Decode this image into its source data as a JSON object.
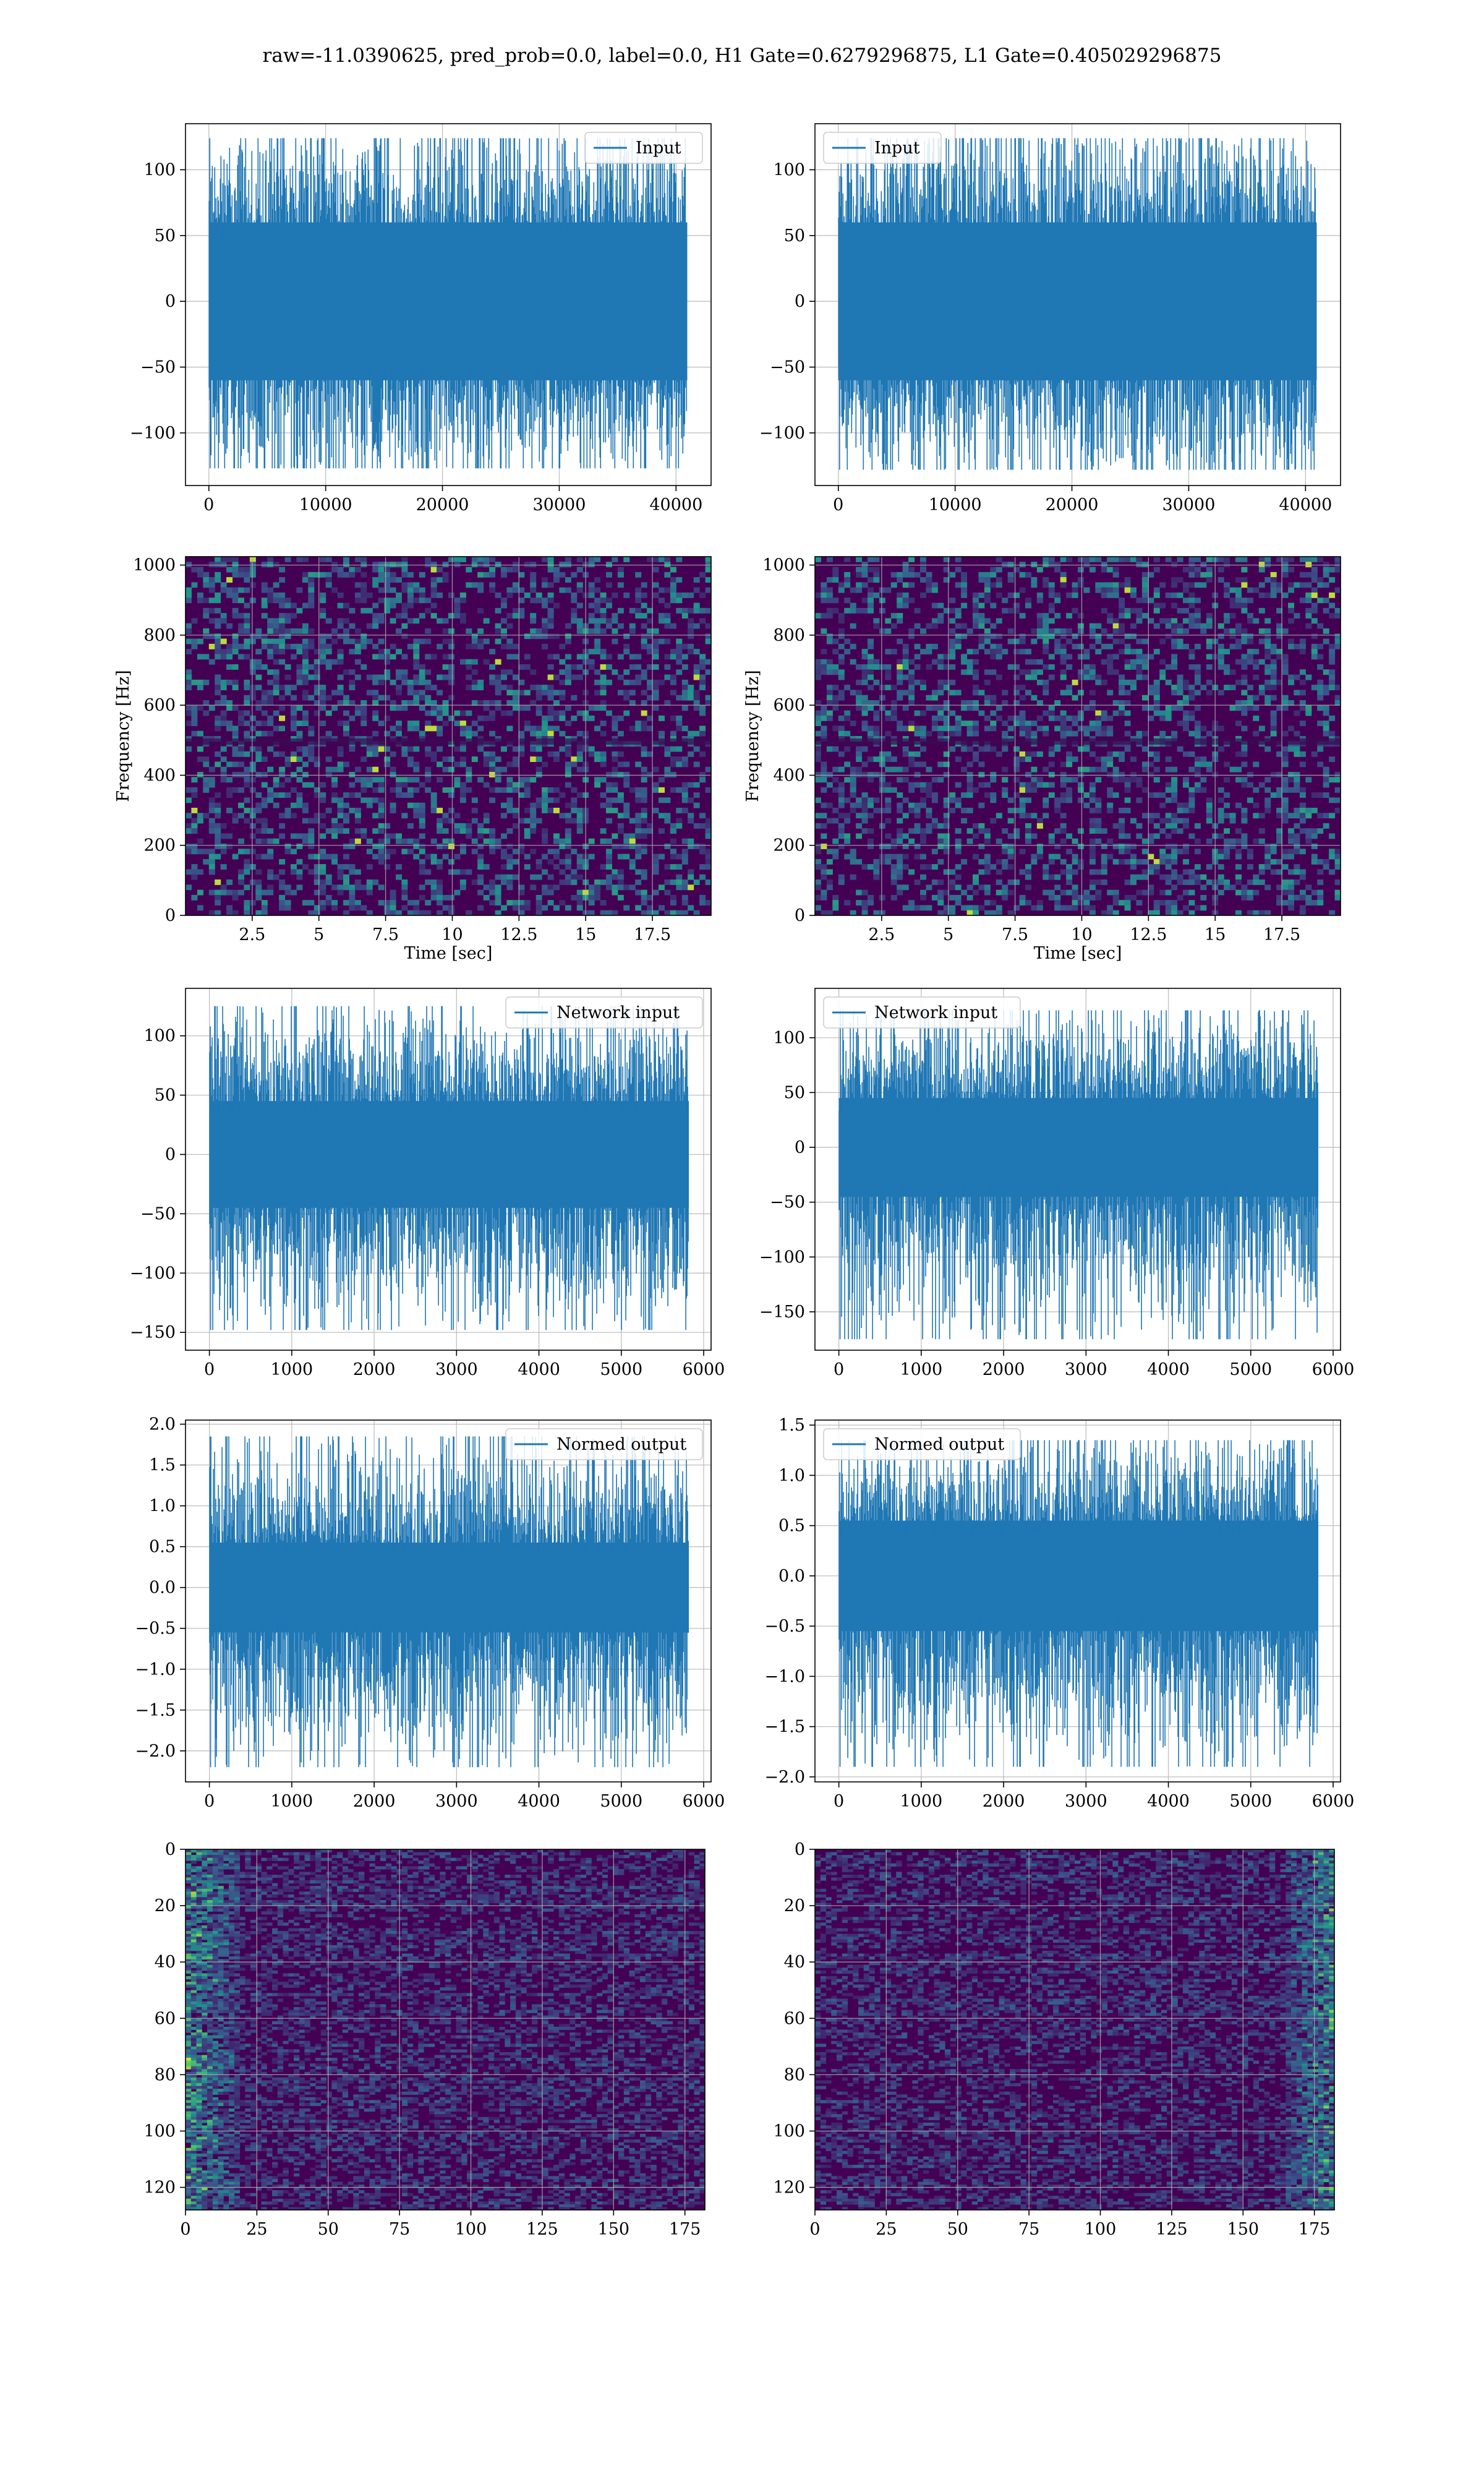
{
  "figure_title": "raw=-11.0390625, pred_prob=0.0, label=0.0, H1 Gate=0.6279296875, L1 Gate=0.405029296875",
  "colors": {
    "line": "#1f77b4",
    "grid": "#b0b0b0",
    "viridis_low": "#440154",
    "viridis_mid": "#21918c",
    "viridis_high": "#fde725"
  },
  "chart_data": [
    {
      "type": "line",
      "id": "r1-left",
      "legend": "Input",
      "legend_loc": "upper-right",
      "xlim": [
        -2000,
        43000
      ],
      "ylim": [
        -140,
        135
      ],
      "xticks": [
        0,
        10000,
        20000,
        30000,
        40000
      ],
      "yticks": [
        -100,
        -50,
        0,
        50,
        100
      ],
      "series": [
        {
          "x_range": [
            0,
            40960
          ],
          "core_amp": 60,
          "peak_max": 124,
          "peak_min": -127
        }
      ],
      "grid": true
    },
    {
      "type": "line",
      "id": "r1-right",
      "legend": "Input",
      "legend_loc": "upper-left",
      "xlim": [
        -2000,
        43000
      ],
      "ylim": [
        -140,
        135
      ],
      "xticks": [
        0,
        10000,
        20000,
        30000,
        40000
      ],
      "yticks": [
        -100,
        -50,
        0,
        50,
        100
      ],
      "series": [
        {
          "x_range": [
            0,
            40960
          ],
          "core_amp": 60,
          "peak_max": 124,
          "peak_min": -128
        }
      ],
      "grid": true
    },
    {
      "type": "heatmap",
      "id": "r2-left",
      "xlabel": "Time [sec]",
      "ylabel": "Frequency [Hz]",
      "xlim": [
        0,
        19.7
      ],
      "ylim": [
        0,
        1024
      ],
      "xticks": [
        2.5,
        5.0,
        7.5,
        10.0,
        12.5,
        15.0,
        17.5
      ],
      "yticks": [
        0,
        200,
        400,
        600,
        800,
        1000
      ],
      "grid": true
    },
    {
      "type": "heatmap",
      "id": "r2-right",
      "xlabel": "Time [sec]",
      "ylabel": "Frequency [Hz]",
      "xlim": [
        0,
        19.7
      ],
      "ylim": [
        0,
        1024
      ],
      "xticks": [
        2.5,
        5.0,
        7.5,
        10.0,
        12.5,
        15.0,
        17.5
      ],
      "yticks": [
        0,
        200,
        400,
        600,
        800,
        1000
      ],
      "grid": true
    },
    {
      "type": "line",
      "id": "r3-left",
      "legend": "Network input",
      "legend_loc": "upper-right",
      "xlim": [
        -290,
        6090
      ],
      "ylim": [
        -165,
        140
      ],
      "xticks": [
        0,
        1000,
        2000,
        3000,
        4000,
        5000,
        6000
      ],
      "yticks": [
        -150,
        -100,
        -50,
        0,
        50,
        100
      ],
      "series": [
        {
          "x_range": [
            0,
            5820
          ],
          "core_amp": 45,
          "peak_max": 125,
          "peak_min": -148
        }
      ],
      "grid": true
    },
    {
      "type": "line",
      "id": "r3-right",
      "legend": "Network input",
      "legend_loc": "upper-left",
      "xlim": [
        -290,
        6090
      ],
      "ylim": [
        -185,
        145
      ],
      "xticks": [
        0,
        1000,
        2000,
        3000,
        4000,
        5000,
        6000
      ],
      "yticks": [
        -150,
        -100,
        -50,
        0,
        50,
        100
      ],
      "series": [
        {
          "x_range": [
            0,
            5820
          ],
          "core_amp": 45,
          "peak_max": 125,
          "peak_min": -175
        }
      ],
      "grid": true
    },
    {
      "type": "line",
      "id": "r4-left",
      "legend": "Normed output",
      "legend_loc": "upper-right",
      "xlim": [
        -290,
        6090
      ],
      "ylim": [
        -2.38,
        2.05
      ],
      "xticks": [
        0,
        1000,
        2000,
        3000,
        4000,
        5000,
        6000
      ],
      "yticks": [
        -2.0,
        -1.5,
        -1.0,
        -0.5,
        0.0,
        0.5,
        1.0,
        1.5,
        2.0
      ],
      "ytick_labels": [
        "−2.0",
        "−1.5",
        "−1.0",
        "−0.5",
        "0.0",
        "0.5",
        "1.0",
        "1.5",
        "2.0"
      ],
      "series": [
        {
          "x_range": [
            0,
            5820
          ],
          "core_amp": 0.55,
          "peak_max": 1.85,
          "peak_min": -2.2
        }
      ],
      "grid": true
    },
    {
      "type": "line",
      "id": "r4-right",
      "legend": "Normed output",
      "legend_loc": "upper-left",
      "xlim": [
        -290,
        6090
      ],
      "ylim": [
        -2.05,
        1.55
      ],
      "xticks": [
        0,
        1000,
        2000,
        3000,
        4000,
        5000,
        6000
      ],
      "yticks": [
        -2.0,
        -1.5,
        -1.0,
        -0.5,
        0.0,
        0.5,
        1.0,
        1.5
      ],
      "ytick_labels": [
        "−2.0",
        "−1.5",
        "−1.0",
        "−0.5",
        "0.0",
        "0.5",
        "1.0",
        "1.5"
      ],
      "series": [
        {
          "x_range": [
            0,
            5820
          ],
          "core_amp": 0.55,
          "peak_max": 1.35,
          "peak_min": -1.9
        }
      ],
      "grid": true
    },
    {
      "type": "heatmap",
      "id": "r5-left",
      "xlim": [
        0,
        182
      ],
      "ylim": [
        128,
        0
      ],
      "xticks": [
        0,
        25,
        50,
        75,
        100,
        125,
        150,
        175
      ],
      "yticks": [
        0,
        20,
        40,
        60,
        80,
        100,
        120
      ],
      "bright_side": "left",
      "grid": true
    },
    {
      "type": "heatmap",
      "id": "r5-right",
      "xlim": [
        0,
        182
      ],
      "ylim": [
        128,
        0
      ],
      "xticks": [
        0,
        25,
        50,
        75,
        100,
        125,
        150,
        175
      ],
      "yticks": [
        0,
        20,
        40,
        60,
        80,
        100,
        120
      ],
      "bright_side": "right",
      "grid": true
    }
  ]
}
